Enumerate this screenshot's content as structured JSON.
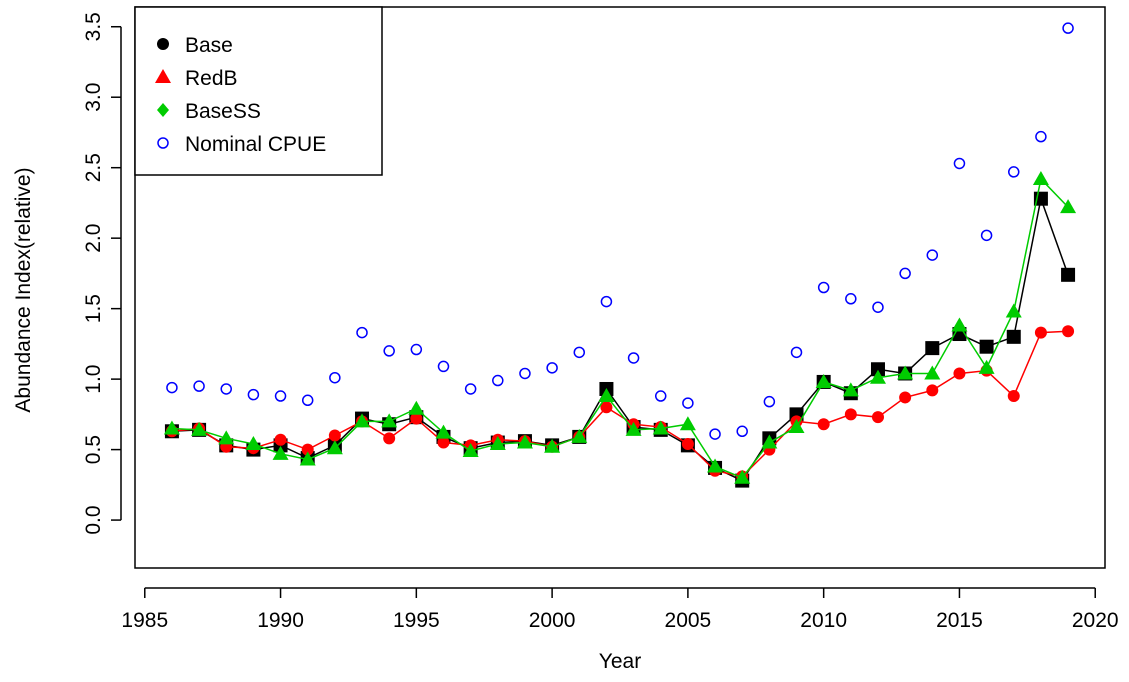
{
  "chart_data": {
    "type": "line",
    "x_label": "Year",
    "y_label": "Abundance Index(relative)",
    "x": [
      1986,
      1987,
      1988,
      1989,
      1990,
      1991,
      1992,
      1993,
      1994,
      1995,
      1996,
      1997,
      1998,
      1999,
      2000,
      2001,
      2002,
      2003,
      2004,
      2005,
      2006,
      2007,
      2008,
      2009,
      2010,
      2011,
      2012,
      2013,
      2014,
      2015,
      2016,
      2017,
      2018,
      2019
    ],
    "series": [
      {
        "name": "Base",
        "color": "#000000",
        "marker": "square",
        "legend_marker": "circle",
        "line": true,
        "values": [
          0.63,
          0.64,
          0.53,
          0.5,
          0.53,
          0.44,
          0.53,
          0.72,
          0.68,
          0.73,
          0.59,
          0.51,
          0.55,
          0.56,
          0.53,
          0.59,
          0.93,
          0.66,
          0.64,
          0.53,
          0.37,
          0.28,
          0.58,
          0.75,
          0.98,
          0.9,
          1.07,
          1.04,
          1.22,
          1.32,
          1.23,
          1.3,
          2.28,
          1.74
        ]
      },
      {
        "name": "RedB",
        "color": "#ff0000",
        "marker": "circle",
        "legend_marker": "triangle",
        "line": true,
        "values": [
          0.63,
          0.65,
          0.52,
          0.51,
          0.57,
          0.5,
          0.6,
          0.7,
          0.58,
          0.72,
          0.55,
          0.53,
          0.57,
          0.56,
          0.52,
          0.59,
          0.8,
          0.68,
          0.66,
          0.54,
          0.35,
          0.31,
          0.5,
          0.7,
          0.68,
          0.75,
          0.73,
          0.87,
          0.92,
          1.04,
          1.06,
          0.88,
          1.33,
          1.34
        ]
      },
      {
        "name": "BaseSS",
        "color": "#00cc00",
        "marker": "triangle",
        "legend_marker": "diamond",
        "line": true,
        "values": [
          0.65,
          0.64,
          0.58,
          0.54,
          0.47,
          0.43,
          0.51,
          0.7,
          0.7,
          0.79,
          0.62,
          0.49,
          0.54,
          0.55,
          0.52,
          0.59,
          0.88,
          0.64,
          0.65,
          0.68,
          0.38,
          0.3,
          0.55,
          0.66,
          0.98,
          0.92,
          1.01,
          1.04,
          1.04,
          1.38,
          1.08,
          1.48,
          2.42,
          2.22
        ]
      },
      {
        "name": "Nominal CPUE",
        "color": "#0000ff",
        "marker": "hollow-circle",
        "legend_marker": "hollow-circle",
        "line": false,
        "values": [
          0.94,
          0.95,
          0.93,
          0.89,
          0.88,
          0.85,
          1.01,
          1.33,
          1.2,
          1.21,
          1.09,
          0.93,
          0.99,
          1.04,
          1.08,
          1.19,
          1.55,
          1.15,
          0.88,
          0.83,
          0.61,
          0.63,
          0.84,
          1.19,
          1.65,
          1.57,
          1.51,
          1.75,
          1.88,
          2.53,
          2.02,
          2.47,
          2.72,
          3.49
        ]
      }
    ],
    "xlim": [
      1984.64,
      2020.36
    ],
    "ylim": [
      -0.34,
      3.64
    ],
    "xticks": [
      1985,
      1990,
      1995,
      2000,
      2005,
      2010,
      2015,
      2020
    ],
    "yticks": [
      {
        "value": 0,
        "label": "0.0"
      },
      {
        "value": 0.5,
        "label": "0.5"
      },
      {
        "value": 1,
        "label": "1.0"
      },
      {
        "value": 1.5,
        "label": "1.5"
      },
      {
        "value": 2,
        "label": "2.0"
      },
      {
        "value": 2.5,
        "label": "2.5"
      },
      {
        "value": 3,
        "label": "3.0"
      },
      {
        "value": 3.5,
        "label": "3.5"
      }
    ],
    "legend": "top-left"
  }
}
